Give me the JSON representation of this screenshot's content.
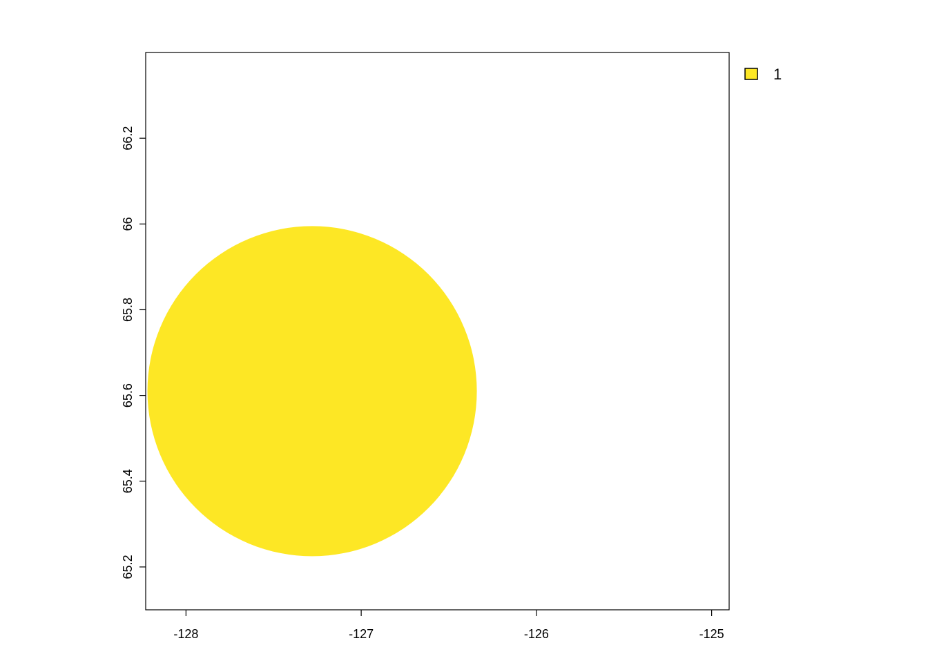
{
  "chart_data": {
    "type": "raster",
    "title": "",
    "xlabel": "",
    "ylabel": "",
    "xlim": [
      -128.23,
      -124.9
    ],
    "ylim": [
      65.1,
      66.4
    ],
    "x_ticks": [
      {
        "value": -128,
        "label": "-128"
      },
      {
        "value": -127,
        "label": "-127"
      },
      {
        "value": -126,
        "label": "-126"
      },
      {
        "value": -125,
        "label": "-125"
      }
    ],
    "y_ticks": [
      {
        "value": 65.2,
        "label": "65.2"
      },
      {
        "value": 65.4,
        "label": "65.4"
      },
      {
        "value": 65.6,
        "label": "65.6"
      },
      {
        "value": 65.8,
        "label": "65.8"
      },
      {
        "value": 66.0,
        "label": "66"
      },
      {
        "value": 66.2,
        "label": "66.2"
      }
    ],
    "shapes": [
      {
        "kind": "circle",
        "center_x": -127.28,
        "center_y": 65.61,
        "radius_x": 0.94,
        "radius_y": 0.385,
        "value": "1"
      }
    ],
    "legend": {
      "placement": "right-top",
      "entries": [
        {
          "label": "1",
          "color": "#FDE725"
        }
      ]
    },
    "grid": false,
    "colors": {
      "fill": "#FDE725",
      "axis": "#000000"
    }
  }
}
